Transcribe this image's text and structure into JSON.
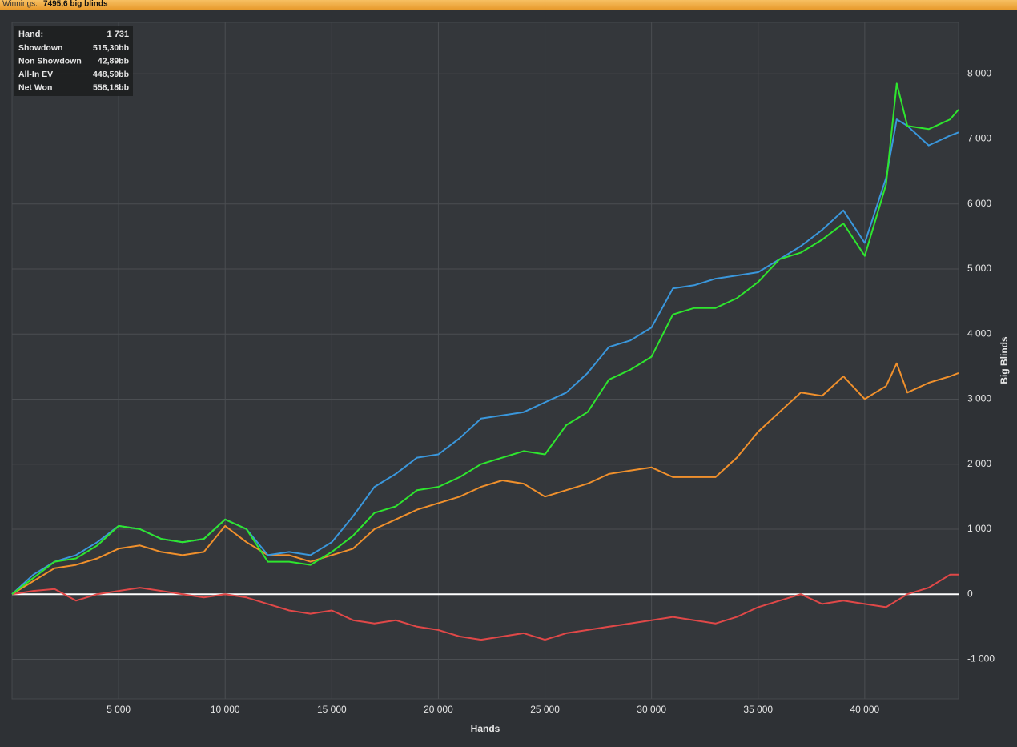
{
  "header": {
    "label": "Winnings:",
    "value": "7495,6 big blinds"
  },
  "chart_data": {
    "type": "line",
    "xlabel": "Hands",
    "ylabel": "Big Blinds",
    "x": [
      0,
      1000,
      2000,
      3000,
      4000,
      5000,
      6000,
      7000,
      8000,
      9000,
      10000,
      11000,
      12000,
      13000,
      14000,
      15000,
      16000,
      17000,
      18000,
      19000,
      20000,
      21000,
      22000,
      23000,
      24000,
      25000,
      26000,
      27000,
      28000,
      29000,
      30000,
      31000,
      32000,
      33000,
      34000,
      35000,
      36000,
      37000,
      38000,
      39000,
      40000,
      41000,
      41500,
      42000,
      43000,
      44000,
      44400
    ],
    "series": [
      {
        "name": "Showdown",
        "color": "#f0902c",
        "values": [
          0,
          200,
          400,
          450,
          550,
          700,
          750,
          650,
          600,
          650,
          1050,
          800,
          600,
          600,
          500,
          600,
          700,
          1000,
          1150,
          1300,
          1400,
          1500,
          1650,
          1750,
          1700,
          1500,
          1600,
          1700,
          1850,
          1900,
          1950,
          1800,
          1800,
          1800,
          2100,
          2500,
          2800,
          3100,
          3050,
          3350,
          3000,
          3200,
          3550,
          3100,
          3250,
          3350,
          3400
        ]
      },
      {
        "name": "Non Showdown",
        "color": "#e04848",
        "values": [
          0,
          50,
          80,
          -100,
          0,
          50,
          100,
          50,
          0,
          -50,
          0,
          -50,
          -150,
          -250,
          -300,
          -250,
          -400,
          -450,
          -400,
          -500,
          -550,
          -650,
          -700,
          -650,
          -600,
          -700,
          -600,
          -550,
          -500,
          -450,
          -400,
          -350,
          -400,
          -450,
          -350,
          -200,
          -100,
          0,
          -150,
          -100,
          -150,
          -200,
          -100,
          0,
          100,
          300,
          300
        ]
      },
      {
        "name": "All-In EV",
        "color": "#3a97dc",
        "values": [
          0,
          300,
          500,
          600,
          800,
          1050,
          1000,
          850,
          800,
          850,
          1150,
          1000,
          600,
          650,
          600,
          800,
          1200,
          1650,
          1850,
          2100,
          2150,
          2400,
          2700,
          2750,
          2800,
          2950,
          3100,
          3400,
          3800,
          3900,
          4100,
          4700,
          4750,
          4850,
          4900,
          4950,
          5150,
          5350,
          5600,
          5900,
          5400,
          6400,
          7300,
          7200,
          6900,
          7050,
          7100
        ]
      },
      {
        "name": "Net Won",
        "color": "#2ee62e",
        "values": [
          0,
          250,
          500,
          550,
          750,
          1050,
          1000,
          850,
          800,
          850,
          1150,
          1000,
          500,
          500,
          450,
          650,
          900,
          1250,
          1350,
          1600,
          1650,
          1800,
          2000,
          2100,
          2200,
          2150,
          2600,
          2800,
          3300,
          3450,
          3650,
          4300,
          4400,
          4400,
          4550,
          4800,
          5150,
          5250,
          5450,
          5700,
          5200,
          6300,
          7850,
          7200,
          7150,
          7300,
          7450
        ]
      }
    ],
    "xlim": [
      0,
      44400
    ],
    "ylim": [
      -1610,
      8790
    ],
    "xticks": [
      {
        "value": 5000,
        "label": "5 000"
      },
      {
        "value": 10000,
        "label": "10 000"
      },
      {
        "value": 15000,
        "label": "15 000"
      },
      {
        "value": 20000,
        "label": "20 000"
      },
      {
        "value": 25000,
        "label": "25 000"
      },
      {
        "value": 30000,
        "label": "30 000"
      },
      {
        "value": 35000,
        "label": "35 000"
      },
      {
        "value": 40000,
        "label": "40 000"
      }
    ],
    "yticks": [
      {
        "value": -1000,
        "label": "-1 000"
      },
      0,
      {
        "value": 1000,
        "label": "1 000"
      },
      {
        "value": 2000,
        "label": "2 000"
      },
      {
        "value": 3000,
        "label": "3 000"
      },
      {
        "value": 4000,
        "label": "4 000"
      },
      {
        "value": 5000,
        "label": "5 000"
      },
      {
        "value": 6000,
        "label": "6 000"
      },
      {
        "value": 7000,
        "label": "7 000"
      },
      {
        "value": 8000,
        "label": "8 000"
      }
    ],
    "grid": true,
    "tooltip": {
      "label": "Hand:",
      "value": "1 731",
      "values": [
        "515,30bb",
        "42,89bb",
        "448,59bb",
        "558,18bb"
      ]
    }
  }
}
